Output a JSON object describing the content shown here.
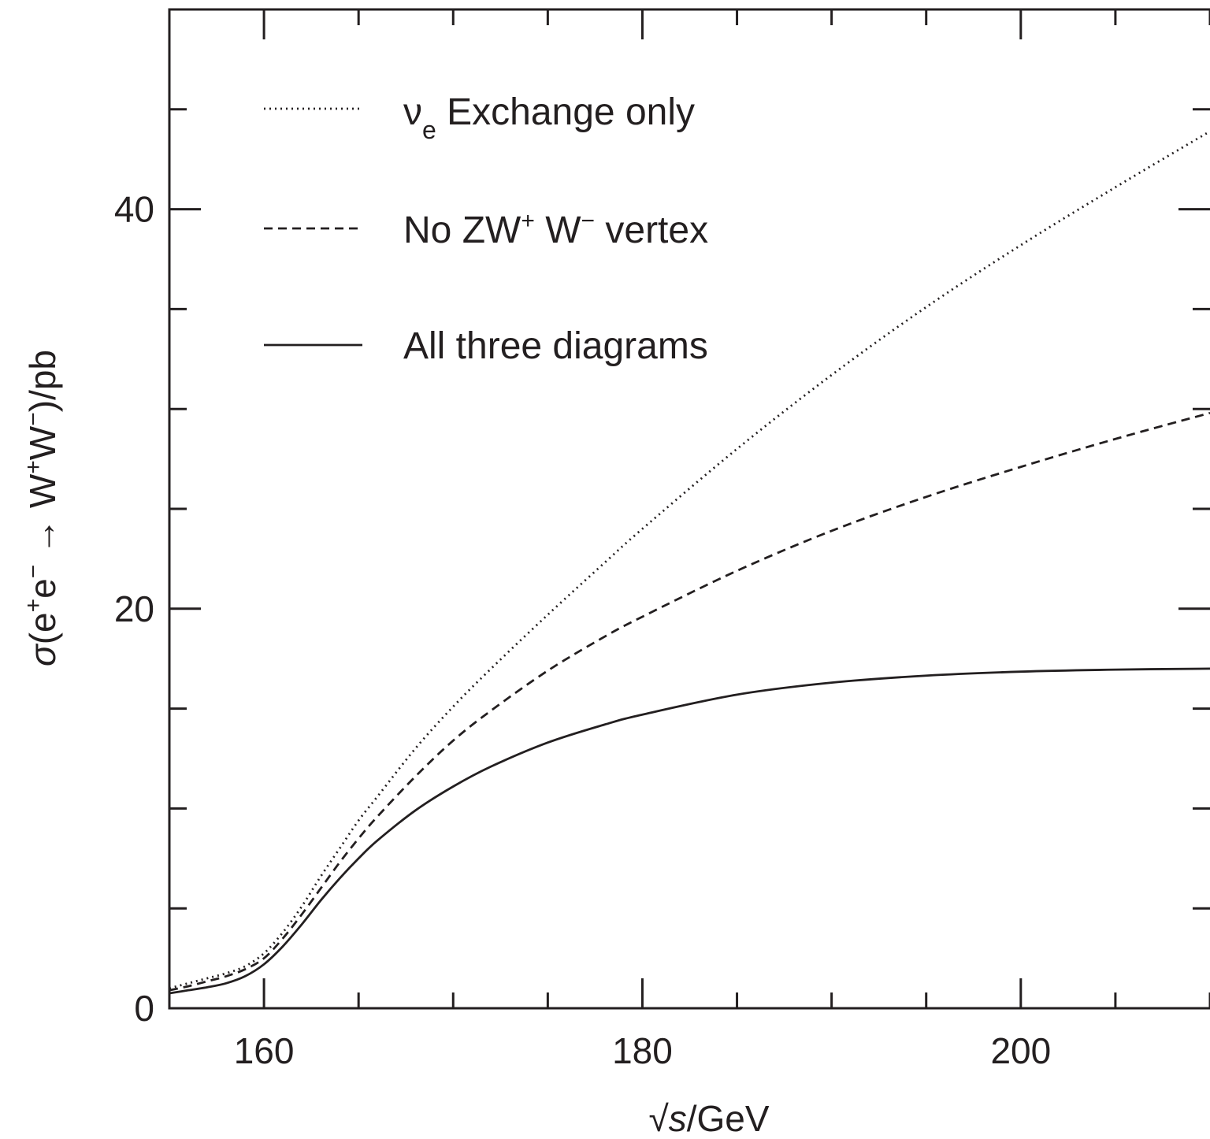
{
  "chart_data": {
    "type": "line",
    "xlabel": {
      "radical": "√",
      "symbol": "s",
      "unit": "/GeV"
    },
    "ylabel": {
      "sigma": "σ",
      "open": "(e",
      "plus1": "+",
      "e2": "e",
      "minus1": "−",
      "arrow": " → W",
      "plus2": "+",
      "w2": "W",
      "minus2": "−",
      "close": ")/pb"
    },
    "xlim": [
      155,
      210
    ],
    "ylim": [
      0,
      50
    ],
    "x_ticks": [
      {
        "value": 160,
        "label": "160"
      },
      {
        "value": 180,
        "label": "180"
      },
      {
        "value": 200,
        "label": "200"
      }
    ],
    "x_minor_step": 5,
    "y_ticks": [
      {
        "value": 0,
        "label": "0"
      },
      {
        "value": 20,
        "label": "20"
      },
      {
        "value": 40,
        "label": "40"
      }
    ],
    "y_minor_step": 5,
    "legend_position": "top-left",
    "series": [
      {
        "id": "ve",
        "name_parts": {
          "main": "ν",
          "sub": "e",
          "rest": " Exchange only"
        },
        "style": "dotted",
        "x": [
          155,
          156,
          157,
          158,
          159,
          160,
          161,
          162,
          163,
          164,
          165,
          166,
          168,
          170,
          172,
          175,
          178,
          180,
          185,
          190,
          195,
          200,
          205,
          210
        ],
        "y": [
          1.0,
          1.25,
          1.5,
          1.75,
          2.1,
          2.75,
          3.8,
          5.1,
          6.6,
          8.0,
          9.4,
          10.6,
          13.0,
          15.1,
          17.0,
          19.7,
          22.3,
          24.0,
          28.0,
          31.7,
          35.1,
          38.2,
          41.1,
          43.9
        ]
      },
      {
        "id": "nozww",
        "name_parts": {
          "pre": "No ZW",
          "sup1": "+",
          "mid": " W",
          "sup2": "−",
          "rest": " vertex"
        },
        "style": "dashed",
        "x": [
          155,
          156,
          157,
          158,
          159,
          160,
          161,
          162,
          163,
          164,
          165,
          166,
          168,
          170,
          172,
          175,
          178,
          180,
          185,
          190,
          195,
          200,
          205,
          210
        ],
        "y": [
          0.9,
          1.1,
          1.35,
          1.6,
          1.95,
          2.5,
          3.5,
          4.7,
          6.0,
          7.3,
          8.5,
          9.6,
          11.6,
          13.4,
          14.9,
          16.9,
          18.6,
          19.6,
          21.9,
          23.9,
          25.6,
          27.1,
          28.5,
          29.8
        ]
      },
      {
        "id": "all",
        "name_parts": {
          "text": "All three diagrams"
        },
        "style": "solid",
        "x": [
          155,
          156,
          157,
          158,
          159,
          160,
          161,
          162,
          163,
          164,
          165,
          166,
          168,
          170,
          172,
          175,
          178,
          180,
          185,
          190,
          195,
          200,
          205,
          210
        ],
        "y": [
          0.75,
          0.9,
          1.05,
          1.25,
          1.6,
          2.2,
          3.1,
          4.2,
          5.4,
          6.5,
          7.5,
          8.4,
          9.9,
          11.1,
          12.1,
          13.3,
          14.2,
          14.7,
          15.7,
          16.3,
          16.65,
          16.85,
          16.95,
          17.0
        ]
      }
    ]
  }
}
